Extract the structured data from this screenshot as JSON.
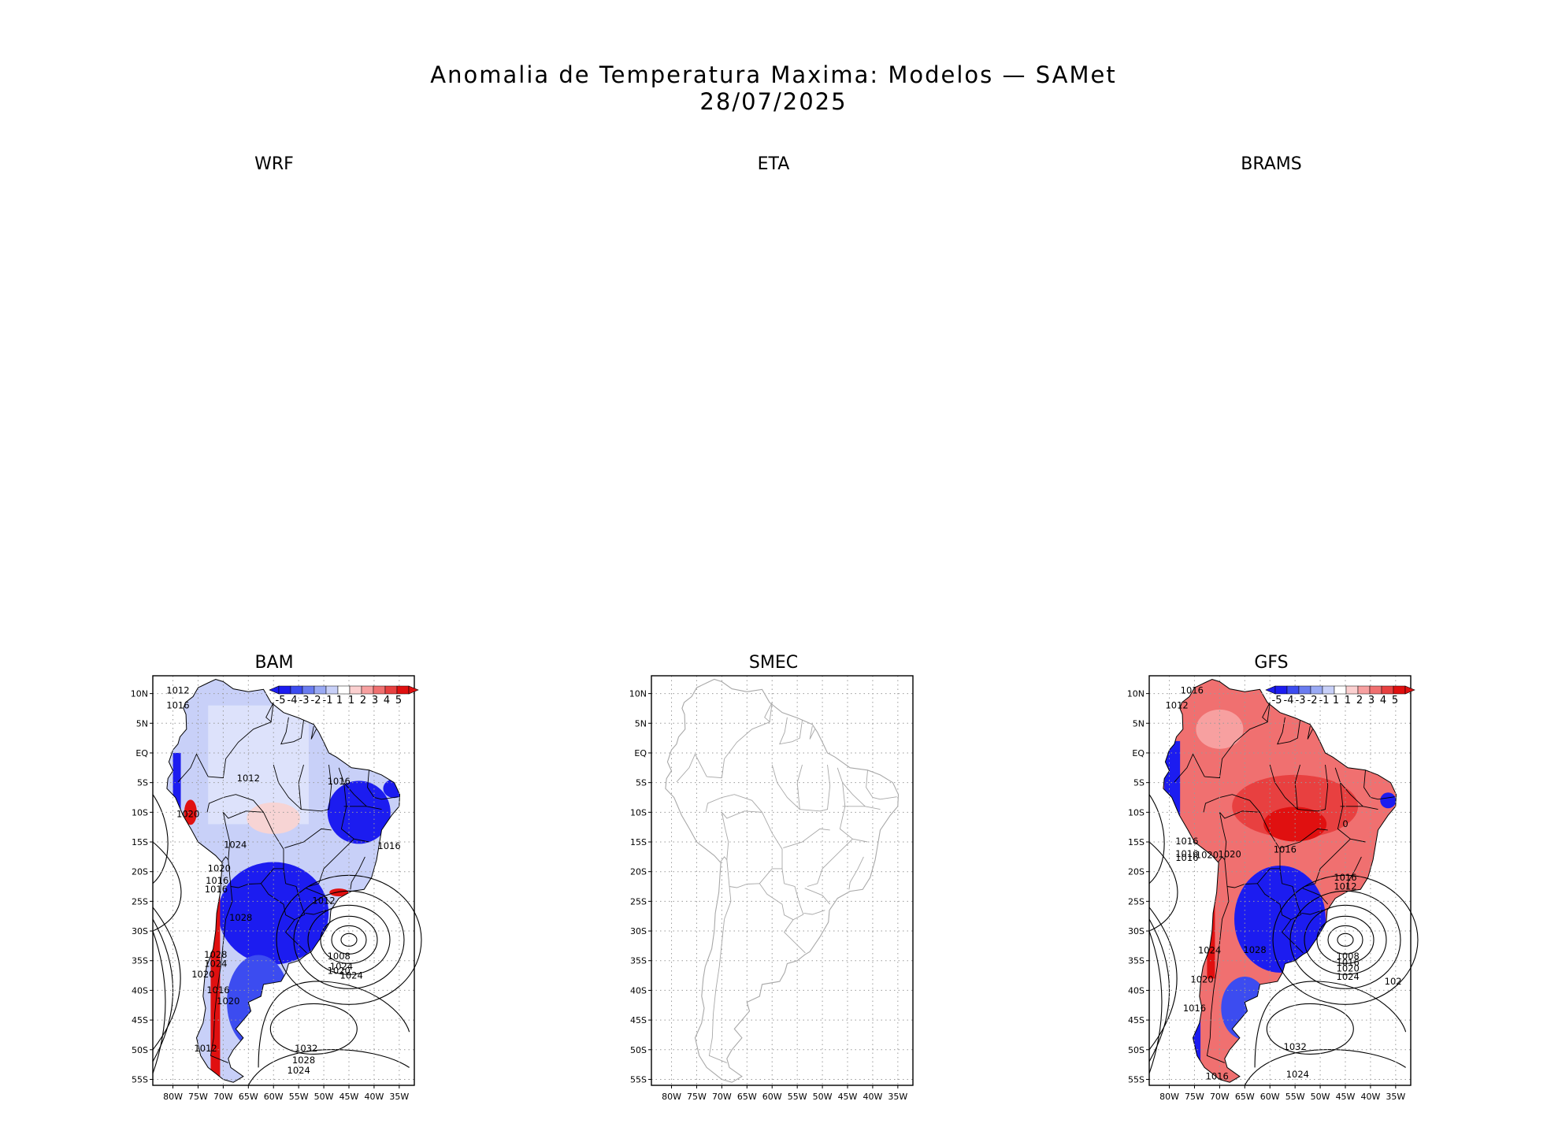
{
  "title": {
    "line1": "Anomalia de Temperatura Maxima: Modelos — SAMet",
    "line2": "28/07/2025"
  },
  "panels": {
    "wrf": {
      "label": "WRF"
    },
    "eta": {
      "label": "ETA"
    },
    "brams": {
      "label": "BRAMS"
    },
    "bam": {
      "label": "BAM"
    },
    "smec": {
      "label": "SMEC"
    },
    "gfs": {
      "label": "GFS"
    }
  },
  "axes": {
    "lat_ticks": [
      "10N",
      "5N",
      "EQ",
      "5S",
      "10S",
      "15S",
      "20S",
      "25S",
      "30S",
      "35S",
      "40S",
      "45S",
      "50S",
      "55S"
    ],
    "lon_ticks": [
      "80W",
      "75W",
      "70W",
      "65W",
      "60W",
      "55W",
      "50W",
      "45W",
      "40W",
      "35W"
    ]
  },
  "colorbar": {
    "labels": [
      "-5",
      "-4",
      "-3",
      "-2",
      "-1",
      "1",
      "1",
      "2",
      "3",
      "4",
      "5"
    ],
    "colors": [
      "#1c1cf0",
      "#3c4cf0",
      "#6a7cf0",
      "#9aaaf4",
      "#c8d0f8",
      "#ffffff",
      "#fbd0d0",
      "#f7a0a0",
      "#f07070",
      "#e84040",
      "#e01010"
    ]
  },
  "bam_isobars": [
    "1012",
    "1016",
    "1012",
    "1016",
    "1020",
    "1016",
    "1024",
    "1020",
    "1016",
    "1016",
    "1012",
    "1028",
    "1028",
    "1024",
    "1024",
    "1016",
    "1020",
    "1012",
    "1008",
    "1020",
    "1024",
    "1032",
    "1028",
    "1024",
    "1020"
  ],
  "gfs_isobars": [
    "1016",
    "1012",
    "1016",
    "1016",
    "1016",
    "1020",
    "1020",
    "1016",
    "1016",
    "1012",
    "1024",
    "1028",
    "1008",
    "1016",
    "1020",
    "1024",
    "1020",
    "1016",
    "1032",
    "1024",
    "1016",
    "102",
    "0"
  ],
  "colors": {
    "warm": "#e8403a",
    "cold": "#2030e8",
    "smec_coast": "#a8a8a8",
    "grid": "#9a9a9a"
  }
}
